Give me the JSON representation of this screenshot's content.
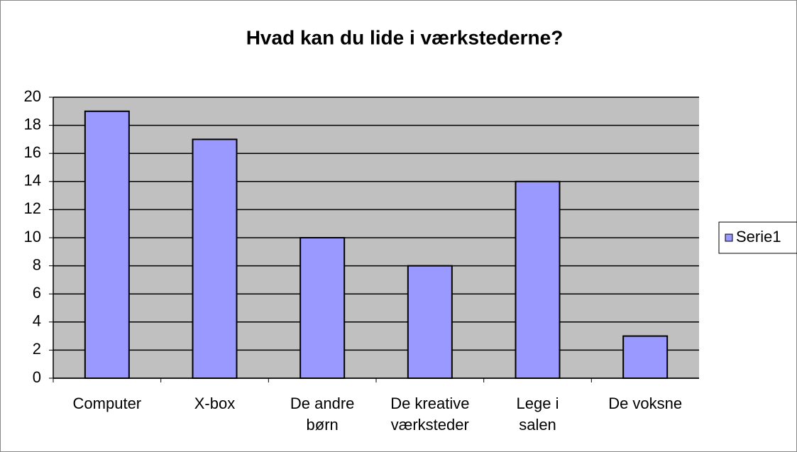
{
  "chart_data": {
    "type": "bar",
    "title": "Hvad kan du lide i værkstederne?",
    "categories": [
      "Computer",
      "X-box",
      "De andre børn",
      "De kreative værksteder",
      "Lege i salen",
      "De voksne"
    ],
    "series": [
      {
        "name": "Serie1",
        "color": "#9999ff",
        "values": [
          19,
          17,
          10,
          8,
          14,
          3
        ]
      }
    ],
    "ylim": [
      0,
      20
    ],
    "yticks": [
      0,
      2,
      4,
      6,
      8,
      10,
      12,
      14,
      16,
      18,
      20
    ],
    "grid": true,
    "legend": "right"
  }
}
